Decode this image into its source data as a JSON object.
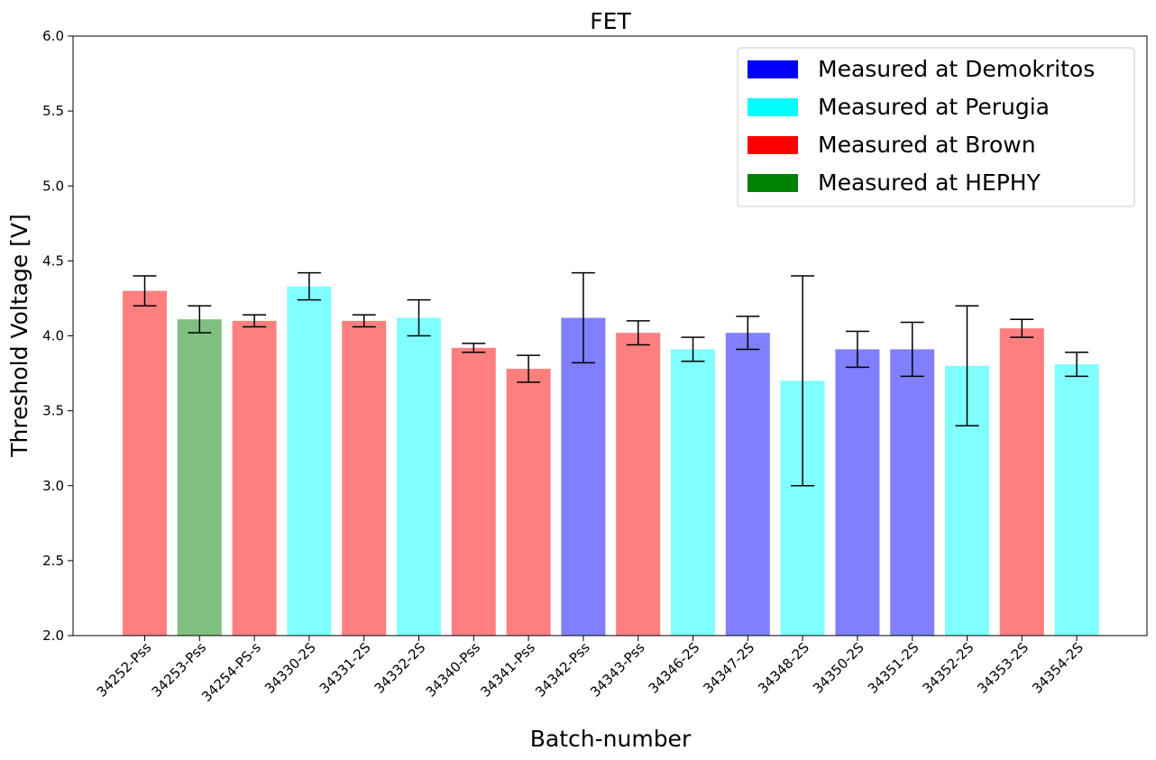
{
  "chart_data": {
    "type": "bar",
    "title": "FET",
    "xlabel": "Batch-number",
    "ylabel": "Threshold Voltage [V]",
    "ylim": [
      2.0,
      6.0
    ],
    "yticks": [
      "2.0",
      "2.5",
      "3.0",
      "3.5",
      "4.0",
      "4.5",
      "5.0",
      "5.5",
      "6.0"
    ],
    "grid": false,
    "legend_position": "top-right",
    "categories": [
      "34252-Pss",
      "34253-Pss",
      "34254-PS-s",
      "34330-2S",
      "34331-2S",
      "34332-2S",
      "34340-Pss",
      "34341-Pss",
      "34342-Pss",
      "34343-Pss",
      "34346-2S",
      "34347-2S",
      "34348-2S",
      "34350-2S",
      "34351-2S",
      "34352-2S",
      "34353-2S",
      "34354-2S"
    ],
    "values": [
      4.3,
      4.11,
      4.1,
      4.33,
      4.1,
      4.12,
      3.92,
      3.78,
      4.12,
      4.02,
      3.91,
      4.02,
      3.7,
      3.91,
      3.91,
      3.8,
      4.05,
      3.81
    ],
    "errors": [
      0.1,
      0.09,
      0.04,
      0.09,
      0.04,
      0.12,
      0.03,
      0.09,
      0.3,
      0.08,
      0.08,
      0.11,
      0.7,
      0.12,
      0.18,
      0.4,
      0.06,
      0.08
    ],
    "sites": [
      "Brown",
      "HEPHY",
      "Brown",
      "Perugia",
      "Brown",
      "Perugia",
      "Brown",
      "Brown",
      "Demokritos",
      "Brown",
      "Perugia",
      "Demokritos",
      "Perugia",
      "Demokritos",
      "Demokritos",
      "Perugia",
      "Brown",
      "Perugia"
    ],
    "legend": [
      {
        "site": "Demokritos",
        "label": "Measured at Demokritos",
        "color": "#0000ff"
      },
      {
        "site": "Perugia",
        "label": "Measured at Perugia",
        "color": "#00ffff"
      },
      {
        "site": "Brown",
        "label": "Measured at Brown",
        "color": "#ff0000"
      },
      {
        "site": "HEPHY",
        "label": "Measured at HEPHY",
        "color": "#008000"
      }
    ],
    "bar_alpha": 0.5
  }
}
